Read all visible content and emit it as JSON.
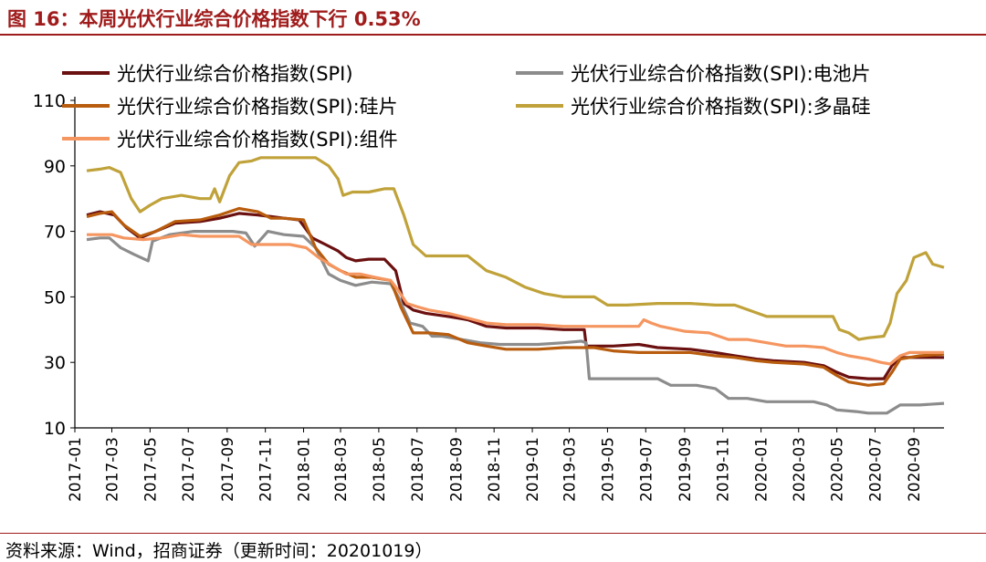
{
  "figure": {
    "title": "图 16：本周光伏行业综合价格指数下行 0.53%",
    "source": "资料来源：Wind，招商证券（更新时间：20201019）"
  },
  "chart_data": {
    "type": "line",
    "ylim": [
      10,
      110
    ],
    "yticks": [
      10,
      30,
      50,
      70,
      90,
      110
    ],
    "x_tick_labels": [
      "2017-01",
      "2017-03",
      "2017-05",
      "2017-07",
      "2017-09",
      "2017-11",
      "2018-01",
      "2018-03",
      "2018-05",
      "2018-07",
      "2018-09",
      "2018-11",
      "2019-01",
      "2019-03",
      "2019-05",
      "2019-07",
      "2019-09",
      "2019-11",
      "2020-01",
      "2020-03",
      "2020-05",
      "2020-07",
      "2020-09"
    ],
    "x_start": "2017-01-01",
    "x_end": "2020-10-19",
    "grid": false,
    "legend_position": "top",
    "series": [
      {
        "name": "光伏行业综合价格指数(SPI)",
        "color": "#6b1010",
        "points": [
          [
            "2017-01-20",
            75
          ],
          [
            "2017-02-10",
            76
          ],
          [
            "2017-03-05",
            75
          ],
          [
            "2017-03-25",
            71
          ],
          [
            "2017-04-15",
            68
          ],
          [
            "2017-05-10",
            70
          ],
          [
            "2017-06-10",
            72.5
          ],
          [
            "2017-07-20",
            73
          ],
          [
            "2017-08-20",
            74
          ],
          [
            "2017-09-20",
            75.5
          ],
          [
            "2017-10-20",
            75
          ],
          [
            "2017-11-10",
            74.5
          ],
          [
            "2017-12-01",
            74
          ],
          [
            "2017-12-25",
            73.5
          ],
          [
            "2018-01-15",
            68
          ],
          [
            "2018-02-05",
            66
          ],
          [
            "2018-02-25",
            64
          ],
          [
            "2018-03-10",
            62
          ],
          [
            "2018-03-25",
            61
          ],
          [
            "2018-04-15",
            61.5
          ],
          [
            "2018-05-10",
            61.5
          ],
          [
            "2018-05-28",
            58
          ],
          [
            "2018-06-10",
            48
          ],
          [
            "2018-06-25",
            46
          ],
          [
            "2018-07-15",
            45
          ],
          [
            "2018-08-20",
            44
          ],
          [
            "2018-09-20",
            43
          ],
          [
            "2018-10-20",
            41
          ],
          [
            "2018-11-20",
            40.5
          ],
          [
            "2019-01-10",
            40.5
          ],
          [
            "2019-02-20",
            40
          ],
          [
            "2019-03-25",
            40
          ],
          [
            "2019-03-28",
            35
          ],
          [
            "2019-05-10",
            35
          ],
          [
            "2019-06-20",
            35.5
          ],
          [
            "2019-07-20",
            34.5
          ],
          [
            "2019-09-10",
            34
          ],
          [
            "2019-10-20",
            33
          ],
          [
            "2019-11-20",
            32
          ],
          [
            "2019-12-25",
            31
          ],
          [
            "2020-01-20",
            30.5
          ],
          [
            "2020-03-10",
            30
          ],
          [
            "2020-04-10",
            29
          ],
          [
            "2020-05-01",
            27
          ],
          [
            "2020-05-20",
            25.5
          ],
          [
            "2020-06-20",
            25
          ],
          [
            "2020-07-15",
            25
          ],
          [
            "2020-07-28",
            29
          ],
          [
            "2020-08-10",
            31.5
          ],
          [
            "2020-09-01",
            31.5
          ],
          [
            "2020-10-19",
            31.5
          ]
        ]
      },
      {
        "name": "光伏行业综合价格指数(SPI):电池片",
        "color": "#8c8c8c",
        "points": [
          [
            "2017-01-20",
            67.5
          ],
          [
            "2017-02-10",
            68
          ],
          [
            "2017-02-25",
            68
          ],
          [
            "2017-03-15",
            65
          ],
          [
            "2017-04-05",
            63
          ],
          [
            "2017-04-28",
            61
          ],
          [
            "2017-05-05",
            67
          ],
          [
            "2017-06-01",
            69
          ],
          [
            "2017-07-10",
            70
          ],
          [
            "2017-08-10",
            70
          ],
          [
            "2017-09-10",
            70
          ],
          [
            "2017-10-01",
            69.5
          ],
          [
            "2017-10-15",
            65.5
          ],
          [
            "2017-11-05",
            70
          ],
          [
            "2017-12-01",
            69
          ],
          [
            "2018-01-01",
            68.5
          ],
          [
            "2018-01-20",
            65
          ],
          [
            "2018-02-10",
            57
          ],
          [
            "2018-03-01",
            55
          ],
          [
            "2018-03-25",
            53.5
          ],
          [
            "2018-04-20",
            54.5
          ],
          [
            "2018-05-20",
            54
          ],
          [
            "2018-06-01",
            50
          ],
          [
            "2018-06-20",
            42
          ],
          [
            "2018-07-10",
            41
          ],
          [
            "2018-07-25",
            38
          ],
          [
            "2018-08-10",
            38
          ],
          [
            "2018-09-10",
            37
          ],
          [
            "2018-10-10",
            36
          ],
          [
            "2018-11-10",
            35.5
          ],
          [
            "2019-01-10",
            35.5
          ],
          [
            "2019-02-20",
            36
          ],
          [
            "2019-03-20",
            36.5
          ],
          [
            "2019-03-28",
            36
          ],
          [
            "2019-04-02",
            25
          ],
          [
            "2019-05-10",
            25
          ],
          [
            "2019-06-20",
            25
          ],
          [
            "2019-07-20",
            25
          ],
          [
            "2019-08-10",
            23
          ],
          [
            "2019-09-20",
            23
          ],
          [
            "2019-10-20",
            22
          ],
          [
            "2019-11-10",
            19
          ],
          [
            "2019-12-10",
            19
          ],
          [
            "2020-01-10",
            18
          ],
          [
            "2020-02-20",
            18
          ],
          [
            "2020-03-25",
            18
          ],
          [
            "2020-04-15",
            17
          ],
          [
            "2020-05-01",
            15.5
          ],
          [
            "2020-06-01",
            15
          ],
          [
            "2020-06-20",
            14.5
          ],
          [
            "2020-07-20",
            14.5
          ],
          [
            "2020-08-10",
            17
          ],
          [
            "2020-09-10",
            17
          ],
          [
            "2020-10-19",
            17.5
          ]
        ]
      },
      {
        "name": "光伏行业综合价格指数(SPI):硅片",
        "color": "#b85c0e",
        "points": [
          [
            "2017-01-20",
            74.5
          ],
          [
            "2017-02-10",
            75.5
          ],
          [
            "2017-03-01",
            76
          ],
          [
            "2017-03-20",
            72
          ],
          [
            "2017-04-15",
            68.5
          ],
          [
            "2017-05-10",
            70
          ],
          [
            "2017-06-10",
            73
          ],
          [
            "2017-07-20",
            73.5
          ],
          [
            "2017-08-20",
            75
          ],
          [
            "2017-09-20",
            77
          ],
          [
            "2017-10-20",
            76
          ],
          [
            "2017-11-10",
            74
          ],
          [
            "2017-12-01",
            74
          ],
          [
            "2018-01-01",
            73.5
          ],
          [
            "2018-01-20",
            65
          ],
          [
            "2018-02-10",
            60
          ],
          [
            "2018-03-01",
            58
          ],
          [
            "2018-03-25",
            56
          ],
          [
            "2018-04-20",
            56
          ],
          [
            "2018-05-20",
            55
          ],
          [
            "2018-06-05",
            47
          ],
          [
            "2018-06-25",
            39
          ],
          [
            "2018-07-20",
            39
          ],
          [
            "2018-08-20",
            38.5
          ],
          [
            "2018-09-20",
            36
          ],
          [
            "2018-10-20",
            35
          ],
          [
            "2018-11-20",
            34
          ],
          [
            "2019-01-10",
            34
          ],
          [
            "2019-02-20",
            34.5
          ],
          [
            "2019-03-25",
            34.5
          ],
          [
            "2019-04-10",
            34.5
          ],
          [
            "2019-05-10",
            33.5
          ],
          [
            "2019-06-20",
            33
          ],
          [
            "2019-07-20",
            33
          ],
          [
            "2019-09-10",
            33
          ],
          [
            "2019-10-20",
            32
          ],
          [
            "2019-11-20",
            31.5
          ],
          [
            "2019-12-25",
            30.5
          ],
          [
            "2020-01-20",
            30
          ],
          [
            "2020-03-10",
            29.5
          ],
          [
            "2020-04-10",
            28.5
          ],
          [
            "2020-05-01",
            26
          ],
          [
            "2020-05-20",
            24
          ],
          [
            "2020-06-20",
            23
          ],
          [
            "2020-07-15",
            23.5
          ],
          [
            "2020-07-28",
            27
          ],
          [
            "2020-08-10",
            31
          ],
          [
            "2020-09-10",
            32
          ],
          [
            "2020-10-19",
            32.5
          ]
        ]
      },
      {
        "name": "光伏行业综合价格指数(SPI):多晶硅",
        "color": "#c0a23a",
        "points": [
          [
            "2017-01-20",
            88.5
          ],
          [
            "2017-02-10",
            89
          ],
          [
            "2017-02-25",
            89.5
          ],
          [
            "2017-03-15",
            88
          ],
          [
            "2017-04-01",
            80
          ],
          [
            "2017-04-15",
            76
          ],
          [
            "2017-05-01",
            78
          ],
          [
            "2017-05-20",
            80
          ],
          [
            "2017-06-20",
            81
          ],
          [
            "2017-07-20",
            80
          ],
          [
            "2017-08-05",
            80
          ],
          [
            "2017-08-12",
            83
          ],
          [
            "2017-08-20",
            79
          ],
          [
            "2017-09-05",
            87
          ],
          [
            "2017-09-20",
            91
          ],
          [
            "2017-10-10",
            91.5
          ],
          [
            "2017-10-25",
            92.5
          ],
          [
            "2017-11-20",
            92.5
          ],
          [
            "2017-12-20",
            92.5
          ],
          [
            "2018-01-20",
            92.5
          ],
          [
            "2018-02-10",
            90
          ],
          [
            "2018-02-25",
            86
          ],
          [
            "2018-03-05",
            81
          ],
          [
            "2018-03-20",
            82
          ],
          [
            "2018-04-15",
            82
          ],
          [
            "2018-05-10",
            83
          ],
          [
            "2018-05-25",
            83
          ],
          [
            "2018-06-10",
            75
          ],
          [
            "2018-06-25",
            66
          ],
          [
            "2018-07-15",
            62.5
          ],
          [
            "2018-08-20",
            62.5
          ],
          [
            "2018-09-20",
            62.5
          ],
          [
            "2018-10-20",
            58
          ],
          [
            "2018-11-20",
            56
          ],
          [
            "2018-12-20",
            53
          ],
          [
            "2019-01-20",
            51
          ],
          [
            "2019-02-20",
            50
          ],
          [
            "2019-03-25",
            50
          ],
          [
            "2019-04-10",
            50
          ],
          [
            "2019-05-01",
            47.5
          ],
          [
            "2019-06-01",
            47.5
          ],
          [
            "2019-07-20",
            48
          ],
          [
            "2019-09-10",
            48
          ],
          [
            "2019-10-20",
            47.5
          ],
          [
            "2019-11-20",
            47.5
          ],
          [
            "2020-01-10",
            44
          ],
          [
            "2020-02-20",
            44
          ],
          [
            "2020-03-25",
            44
          ],
          [
            "2020-04-25",
            44
          ],
          [
            "2020-05-05",
            40
          ],
          [
            "2020-05-20",
            39
          ],
          [
            "2020-06-05",
            37
          ],
          [
            "2020-06-20",
            37.5
          ],
          [
            "2020-07-15",
            38
          ],
          [
            "2020-07-25",
            42
          ],
          [
            "2020-08-05",
            51
          ],
          [
            "2020-08-20",
            55
          ],
          [
            "2020-09-01",
            62
          ],
          [
            "2020-09-20",
            63.5
          ],
          [
            "2020-10-01",
            60
          ],
          [
            "2020-10-19",
            59
          ]
        ]
      },
      {
        "name": "光伏行业综合价格指数(SPI):组件",
        "color": "#f59660",
        "points": [
          [
            "2017-01-20",
            69
          ],
          [
            "2017-02-10",
            69
          ],
          [
            "2017-03-01",
            69
          ],
          [
            "2017-03-20",
            68
          ],
          [
            "2017-04-20",
            67.5
          ],
          [
            "2017-05-20",
            68
          ],
          [
            "2017-06-20",
            69
          ],
          [
            "2017-07-20",
            68.5
          ],
          [
            "2017-08-20",
            68.5
          ],
          [
            "2017-09-20",
            68.5
          ],
          [
            "2017-10-10",
            66
          ],
          [
            "2017-11-10",
            66
          ],
          [
            "2017-12-10",
            66
          ],
          [
            "2018-01-05",
            65
          ],
          [
            "2018-01-25",
            62
          ],
          [
            "2018-02-20",
            59
          ],
          [
            "2018-03-10",
            57
          ],
          [
            "2018-04-01",
            57
          ],
          [
            "2018-04-25",
            56
          ],
          [
            "2018-05-20",
            55
          ],
          [
            "2018-06-01",
            52
          ],
          [
            "2018-06-15",
            48
          ],
          [
            "2018-07-01",
            47
          ],
          [
            "2018-07-20",
            46
          ],
          [
            "2018-08-20",
            45
          ],
          [
            "2018-09-20",
            43.5
          ],
          [
            "2018-10-20",
            42
          ],
          [
            "2018-11-20",
            41.5
          ],
          [
            "2019-01-10",
            41.5
          ],
          [
            "2019-02-20",
            41
          ],
          [
            "2019-03-25",
            41
          ],
          [
            "2019-04-20",
            41
          ],
          [
            "2019-05-20",
            41
          ],
          [
            "2019-06-20",
            41
          ],
          [
            "2019-06-28",
            43
          ],
          [
            "2019-07-10",
            42
          ],
          [
            "2019-07-25",
            41
          ],
          [
            "2019-09-01",
            39.5
          ],
          [
            "2019-10-10",
            39
          ],
          [
            "2019-11-10",
            37
          ],
          [
            "2019-12-10",
            37
          ],
          [
            "2020-01-10",
            36
          ],
          [
            "2020-02-10",
            35
          ],
          [
            "2020-03-10",
            35
          ],
          [
            "2020-04-10",
            34.5
          ],
          [
            "2020-05-01",
            33
          ],
          [
            "2020-05-20",
            32
          ],
          [
            "2020-06-20",
            31
          ],
          [
            "2020-07-10",
            30
          ],
          [
            "2020-07-25",
            29.5
          ],
          [
            "2020-08-10",
            32
          ],
          [
            "2020-08-25",
            33
          ],
          [
            "2020-09-20",
            33
          ],
          [
            "2020-10-19",
            33
          ]
        ]
      }
    ]
  }
}
